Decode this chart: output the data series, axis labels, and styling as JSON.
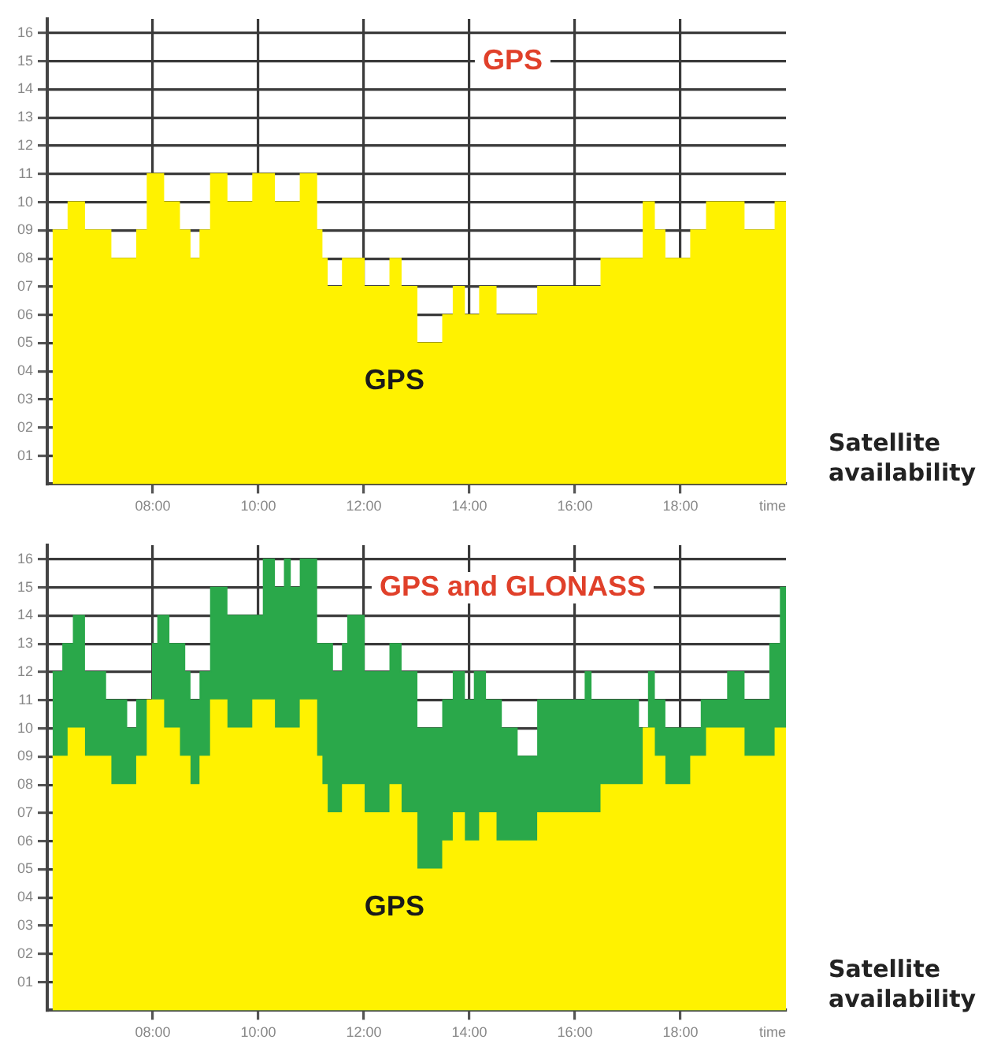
{
  "chart_data": [
    {
      "type": "area",
      "title": "GPS",
      "xlabel": "time",
      "xlim": [
        6,
        20
      ],
      "ylim": [
        0,
        16.5
      ],
      "grid": true,
      "legend": false,
      "xticks": [
        {
          "value": 8,
          "label": "08:00"
        },
        {
          "value": 10,
          "label": "10:00"
        },
        {
          "value": 12,
          "label": "12:00"
        },
        {
          "value": 14,
          "label": "14:00"
        },
        {
          "value": 16,
          "label": "16:00"
        },
        {
          "value": 18,
          "label": "18:00"
        }
      ],
      "yticks": [
        {
          "value": 1,
          "label": "01"
        },
        {
          "value": 2,
          "label": "02"
        },
        {
          "value": 3,
          "label": "03"
        },
        {
          "value": 4,
          "label": "04"
        },
        {
          "value": 5,
          "label": "05"
        },
        {
          "value": 6,
          "label": "06"
        },
        {
          "value": 7,
          "label": "07"
        },
        {
          "value": 8,
          "label": "08"
        },
        {
          "value": 9,
          "label": "09"
        },
        10,
        11,
        12,
        13,
        14,
        15,
        16
      ],
      "annotations": [
        "Satellite availability"
      ],
      "series": [
        {
          "name": "GPS",
          "color": "#fff200",
          "x": [
            6.1,
            6.4,
            6.4,
            6.7,
            6.7,
            7.2,
            7.2,
            7.7,
            7.7,
            7.9,
            7.9,
            8.2,
            8.2,
            8.5,
            8.5,
            8.7,
            8.7,
            8.9,
            8.9,
            9.1,
            9.1,
            9.4,
            9.4,
            9.9,
            9.9,
            10.3,
            10.3,
            10.8,
            10.8,
            11.1,
            11.1,
            11.2,
            11.2,
            11.3,
            11.3,
            11.6,
            11.6,
            12,
            12,
            12.5,
            12.5,
            12.7,
            12.7,
            13,
            13,
            13.5,
            13.5,
            13.7,
            13.7,
            13.9,
            13.9,
            14.2,
            14.2,
            14.5,
            14.5,
            15.3,
            15.3,
            16.5,
            16.5,
            17.3,
            17.3,
            17.5,
            17.5,
            17.7,
            17.7,
            18.2,
            18.2,
            18.5,
            18.5,
            19.2,
            19.2,
            19.8,
            19.8,
            20
          ],
          "values": [
            9,
            9,
            10,
            10,
            9,
            9,
            8,
            8,
            9,
            9,
            11,
            11,
            10,
            10,
            9,
            9,
            8,
            8,
            9,
            9,
            11,
            11,
            10,
            10,
            11,
            11,
            10,
            10,
            11,
            11,
            9,
            9,
            8,
            8,
            7,
            7,
            8,
            8,
            7,
            7,
            8,
            8,
            7,
            7,
            5,
            5,
            6,
            6,
            7,
            7,
            6,
            6,
            7,
            7,
            6,
            6,
            7,
            7,
            8,
            8,
            10,
            10,
            9,
            9,
            8,
            8,
            9,
            9,
            10,
            10,
            9,
            9,
            10,
            10
          ]
        }
      ]
    },
    {
      "type": "area",
      "title": "GPS and GLONASS",
      "xlabel": "time",
      "xlim": [
        6,
        20
      ],
      "ylim": [
        0,
        16.5
      ],
      "grid": true,
      "legend": false,
      "xticks": [
        {
          "value": 8,
          "label": "08:00"
        },
        {
          "value": 10,
          "label": "10:00"
        },
        {
          "value": 12,
          "label": "12:00"
        },
        {
          "value": 14,
          "label": "14:00"
        },
        {
          "value": 16,
          "label": "16:00"
        },
        {
          "value": 18,
          "label": "18:00"
        }
      ],
      "yticks": [
        {
          "value": 1,
          "label": "01"
        },
        {
          "value": 2,
          "label": "02"
        },
        {
          "value": 3,
          "label": "03"
        },
        {
          "value": 4,
          "label": "04"
        },
        {
          "value": 5,
          "label": "05"
        },
        {
          "value": 6,
          "label": "06"
        },
        {
          "value": 7,
          "label": "07"
        },
        {
          "value": 8,
          "label": "08"
        },
        {
          "value": 9,
          "label": "09"
        },
        10,
        11,
        12,
        13,
        14,
        15,
        16
      ],
      "annotations": [
        "Satellite availability"
      ],
      "series": [
        {
          "name": "GPS",
          "color": "#fff200",
          "x": [
            6.1,
            6.4,
            6.4,
            6.7,
            6.7,
            7.2,
            7.2,
            7.7,
            7.7,
            7.9,
            7.9,
            8.2,
            8.2,
            8.5,
            8.5,
            8.7,
            8.7,
            8.9,
            8.9,
            9.1,
            9.1,
            9.4,
            9.4,
            9.9,
            9.9,
            10.3,
            10.3,
            10.8,
            10.8,
            11.1,
            11.1,
            11.2,
            11.2,
            11.3,
            11.3,
            11.6,
            11.6,
            12,
            12,
            12.5,
            12.5,
            12.7,
            12.7,
            13,
            13,
            13.5,
            13.5,
            13.7,
            13.7,
            13.9,
            13.9,
            14.2,
            14.2,
            14.5,
            14.5,
            15.3,
            15.3,
            16.5,
            16.5,
            17.3,
            17.3,
            17.5,
            17.5,
            17.7,
            17.7,
            18.2,
            18.2,
            18.5,
            18.5,
            19.2,
            19.2,
            19.8,
            19.8,
            20
          ],
          "values": [
            9,
            9,
            10,
            10,
            9,
            9,
            8,
            8,
            9,
            9,
            11,
            11,
            10,
            10,
            9,
            9,
            8,
            8,
            9,
            9,
            11,
            11,
            10,
            10,
            11,
            11,
            10,
            10,
            11,
            11,
            9,
            9,
            8,
            8,
            7,
            7,
            8,
            8,
            7,
            7,
            8,
            8,
            7,
            7,
            5,
            5,
            6,
            6,
            7,
            7,
            6,
            6,
            7,
            7,
            6,
            6,
            7,
            7,
            8,
            8,
            10,
            10,
            9,
            9,
            8,
            8,
            9,
            9,
            10,
            10,
            9,
            9,
            10,
            10
          ]
        },
        {
          "color": "#2aa84a",
          "x": [
            6.1,
            6.3,
            6.3,
            6.5,
            6.5,
            6.7,
            6.7,
            7.1,
            7.1,
            7.5,
            7.5,
            7.7,
            7.7,
            8.0,
            8.0,
            8.1,
            8.1,
            8.3,
            8.3,
            8.6,
            8.6,
            8.7,
            8.7,
            8.9,
            8.9,
            9.1,
            9.1,
            9.4,
            9.4,
            10.1,
            10.1,
            10.3,
            10.3,
            10.5,
            10.5,
            10.6,
            10.6,
            10.8,
            10.8,
            11.1,
            11.1,
            11.4,
            11.4,
            11.6,
            11.6,
            11.7,
            11.7,
            12.0,
            12.0,
            12.5,
            12.5,
            12.7,
            12.7,
            13.0,
            13.0,
            13.5,
            13.5,
            13.7,
            13.7,
            13.9,
            13.9,
            14.1,
            14.1,
            14.3,
            14.3,
            14.6,
            14.6,
            14.9,
            14.9,
            15.3,
            15.3,
            16.2,
            16.2,
            16.3,
            16.3,
            17.2,
            17.2,
            17.4,
            17.4,
            17.5,
            17.5,
            17.7,
            17.7,
            18.4,
            18.4,
            18.9,
            18.9,
            19.2,
            19.2,
            19.7,
            19.7,
            19.9,
            19.9,
            20
          ],
          "values": [
            12,
            12,
            13,
            13,
            14,
            14,
            12,
            12,
            11,
            11,
            10,
            10,
            11,
            11,
            13,
            13,
            14,
            14,
            13,
            13,
            12,
            12,
            11,
            11,
            12,
            12,
            15,
            15,
            14,
            14,
            16,
            16,
            15,
            15,
            16,
            16,
            15,
            15,
            16,
            16,
            13,
            13,
            12,
            12,
            13,
            13,
            14,
            14,
            12,
            12,
            13,
            13,
            12,
            12,
            10,
            10,
            11,
            11,
            12,
            12,
            11,
            11,
            12,
            12,
            11,
            11,
            10,
            10,
            9,
            9,
            11,
            11,
            12,
            12,
            11,
            11,
            10,
            10,
            12,
            12,
            11,
            11,
            10,
            10,
            11,
            11,
            12,
            12,
            11,
            11,
            13,
            13,
            15,
            15
          ]
        }
      ]
    }
  ]
}
